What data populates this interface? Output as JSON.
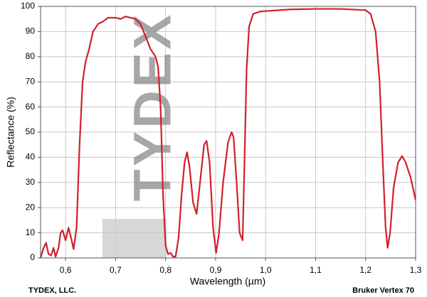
{
  "chart_data": {
    "type": "line",
    "x_label": "Wavelength (µm)",
    "y_label": "Reflectance (%)",
    "footer_left": "TYDEX, LLC.",
    "footer_right": "Bruker Vertex 70",
    "watermark": "TYDEX",
    "xlim": [
      0.55,
      1.3
    ],
    "ylim": [
      0,
      100
    ],
    "xticks": [
      {
        "value": 0.6,
        "label": "0,6"
      },
      {
        "value": 0.7,
        "label": "0,7"
      },
      {
        "value": 0.8,
        "label": "0,8"
      },
      {
        "value": 0.9,
        "label": "0,9"
      },
      {
        "value": 1.0,
        "label": "1,0"
      },
      {
        "value": 1.1,
        "label": "1,1"
      },
      {
        "value": 1.2,
        "label": "1,2"
      },
      {
        "value": 1.3,
        "label": "1,3"
      }
    ],
    "yticks": [
      0,
      10,
      20,
      30,
      40,
      50,
      60,
      70,
      80,
      90,
      100
    ],
    "grid": true,
    "x": [
      0.55,
      0.556,
      0.561,
      0.566,
      0.571,
      0.576,
      0.58,
      0.586,
      0.59,
      0.594,
      0.6,
      0.606,
      0.611,
      0.616,
      0.622,
      0.628,
      0.634,
      0.64,
      0.647,
      0.655,
      0.665,
      0.675,
      0.685,
      0.7,
      0.71,
      0.72,
      0.73,
      0.74,
      0.75,
      0.76,
      0.77,
      0.78,
      0.785,
      0.79,
      0.795,
      0.8,
      0.805,
      0.81,
      0.815,
      0.82,
      0.826,
      0.832,
      0.838,
      0.843,
      0.848,
      0.855,
      0.862,
      0.87,
      0.877,
      0.882,
      0.888,
      0.895,
      0.901,
      0.907,
      0.915,
      0.925,
      0.932,
      0.936,
      0.942,
      0.948,
      0.954,
      0.958,
      0.962,
      0.967,
      0.975,
      0.99,
      1.05,
      1.1,
      1.15,
      1.2,
      1.21,
      1.22,
      1.228,
      1.235,
      1.24,
      1.244,
      1.249,
      1.256,
      1.265,
      1.273,
      1.28,
      1.29,
      1.3
    ],
    "series": [
      {
        "color": "#d2202a",
        "values": [
          0,
          4,
          6,
          1.5,
          1,
          4,
          0.5,
          4,
          10,
          11,
          7,
          12,
          8,
          3.5,
          12,
          45,
          70,
          78,
          83,
          90,
          93,
          94,
          95.5,
          95.5,
          95,
          96,
          95.5,
          95,
          93,
          88,
          83,
          80,
          76,
          60,
          25,
          5,
          1.5,
          2,
          0.5,
          0.5,
          8,
          25,
          38,
          42,
          36,
          22,
          17.5,
          32,
          45,
          46.5,
          38,
          12,
          2,
          10,
          30,
          46,
          50,
          48,
          30,
          10,
          7,
          40,
          75,
          92,
          97,
          98,
          98.8,
          99,
          99,
          98.5,
          97,
          90,
          70,
          35,
          12,
          4,
          10,
          28,
          38,
          40.5,
          38,
          32,
          23
        ]
      }
    ]
  }
}
